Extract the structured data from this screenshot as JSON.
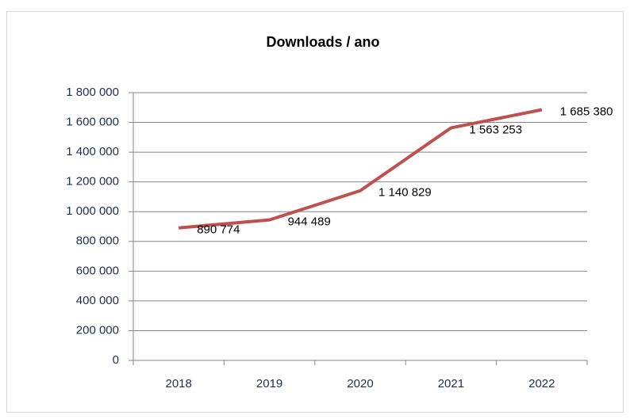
{
  "chart_data": {
    "type": "line",
    "title": "Downloads / ano",
    "categories": [
      "2018",
      "2019",
      "2020",
      "2021",
      "2022"
    ],
    "series": [
      {
        "name": "Downloads",
        "color": "#c0504d",
        "values": [
          890774,
          944489,
          1140829,
          1563253,
          1685380
        ],
        "value_labels": [
          "890 774",
          "944 489",
          "1 140 829",
          "1 563 253",
          "1 685 380"
        ]
      }
    ],
    "ylim": [
      0,
      1800000
    ],
    "yticks": [
      0,
      {
        "value": 200000,
        "label": "200 000"
      },
      {
        "value": 400000,
        "label": "400 000"
      },
      {
        "value": 600000,
        "label": "600 000"
      },
      {
        "value": 800000,
        "label": "800 000"
      },
      {
        "value": 1000000,
        "label": "1 000 000"
      },
      {
        "value": 1200000,
        "label": "1 200 000"
      },
      {
        "value": 1400000,
        "label": "1 400 000"
      },
      {
        "value": 1600000,
        "label": "1 600 000"
      },
      {
        "value": 1800000,
        "label": "1 800 000"
      }
    ],
    "grid": true
  }
}
